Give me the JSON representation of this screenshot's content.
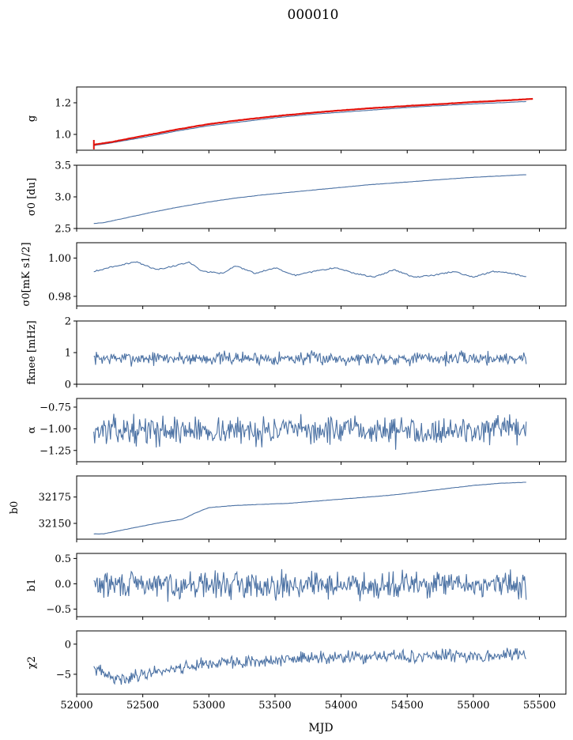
{
  "figure": {
    "title": "000010",
    "xlabel": "MJD"
  },
  "colors": {
    "series": "#4c72a4",
    "fit": "#e3120b"
  },
  "chart_data": [
    {
      "type": "line",
      "ylabel": "g",
      "xlim": [
        52000,
        55700
      ],
      "ylim": [
        0.9,
        1.3
      ],
      "yticks": [
        1.0,
        1.2
      ],
      "yticklabels": [
        "1.0",
        "1.2"
      ],
      "series": [
        {
          "values_x": [
            52130,
            52250,
            52500,
            52750,
            53000,
            53250,
            53500,
            53750,
            54000,
            54250,
            54500,
            54750,
            55000,
            55250,
            55400
          ],
          "values": [
            0.93,
            0.945,
            0.98,
            1.02,
            1.055,
            1.08,
            1.105,
            1.125,
            1.14,
            1.155,
            1.17,
            1.182,
            1.193,
            1.202,
            1.208
          ]
        },
        {
          "values_x": [
            52130,
            52250,
            52500,
            52750,
            53000,
            53250,
            53500,
            53750,
            54000,
            54250,
            54500,
            54750,
            55000,
            55250,
            55450
          ],
          "values": [
            0.935,
            0.95,
            0.99,
            1.03,
            1.065,
            1.092,
            1.115,
            1.135,
            1.152,
            1.167,
            1.18,
            1.192,
            1.205,
            1.215,
            1.225
          ]
        }
      ]
    },
    {
      "type": "line",
      "ylabel": "σ0 [du]",
      "xlim": [
        52000,
        55700
      ],
      "ylim": [
        2.5,
        3.5
      ],
      "yticks": [
        2.5,
        3.0,
        3.5
      ],
      "yticklabels": [
        "2.5",
        "3.0",
        "3.5"
      ],
      "series": [
        {
          "values_x": [
            52130,
            52200,
            52400,
            52600,
            52800,
            53000,
            53200,
            53400,
            53600,
            53800,
            54000,
            54200,
            54400,
            54600,
            54800,
            55000,
            55200,
            55400
          ],
          "values": [
            2.58,
            2.59,
            2.68,
            2.77,
            2.85,
            2.92,
            2.98,
            3.03,
            3.07,
            3.11,
            3.15,
            3.19,
            3.22,
            3.25,
            3.28,
            3.31,
            3.33,
            3.35
          ]
        }
      ]
    },
    {
      "type": "line",
      "ylabel": "σ0[mK s1/2]",
      "xlim": [
        52000,
        55700
      ],
      "ylim": [
        0.975,
        1.008
      ],
      "yticks": [
        0.98,
        1.0
      ],
      "yticklabels": [
        "0.98",
        "1.00"
      ],
      "series": [
        {
          "values_x": [
            52130,
            52300,
            52450,
            52600,
            52750,
            52850,
            52950,
            53100,
            53200,
            53350,
            53500,
            53650,
            53800,
            53950,
            54100,
            54250,
            54400,
            54550,
            54700,
            54850,
            55000,
            55150,
            55300,
            55400
          ],
          "values": [
            0.993,
            0.996,
            0.998,
            0.994,
            0.996,
            0.998,
            0.993,
            0.992,
            0.996,
            0.992,
            0.995,
            0.991,
            0.993,
            0.995,
            0.992,
            0.99,
            0.994,
            0.99,
            0.991,
            0.993,
            0.99,
            0.993,
            0.992,
            0.99
          ]
        }
      ]
    },
    {
      "type": "line",
      "ylabel": "fknee [mHz]",
      "xlim": [
        52000,
        55700
      ],
      "ylim": [
        0,
        2
      ],
      "yticks": [
        0,
        1,
        2
      ],
      "yticklabels": [
        "0",
        "1",
        "2"
      ],
      "series": [
        {
          "mean": 0.82,
          "noise": 0.12,
          "x_start": 52130,
          "x_end": 55400,
          "n": 520,
          "seed": 7
        }
      ]
    },
    {
      "type": "line",
      "ylabel": "α",
      "xlim": [
        52000,
        55700
      ],
      "ylim": [
        -1.38,
        -0.65
      ],
      "yticks": [
        -1.25,
        -1.0,
        -0.75
      ],
      "yticklabels": [
        "−1.25",
        "−1.00",
        "−0.75"
      ],
      "series": [
        {
          "mean": -1.02,
          "noise": 0.09,
          "x_start": 52130,
          "x_end": 55400,
          "n": 520,
          "seed": 13
        }
      ]
    },
    {
      "type": "line",
      "ylabel": "b0",
      "xlim": [
        52000,
        55700
      ],
      "ylim": [
        32135,
        32195
      ],
      "yticks": [
        32150,
        32175
      ],
      "yticklabels": [
        "32150",
        "32175"
      ],
      "series": [
        {
          "values_x": [
            52130,
            52200,
            52400,
            52600,
            52800,
            52900,
            53000,
            53200,
            53400,
            53600,
            53800,
            54000,
            54200,
            54400,
            54600,
            54800,
            55000,
            55200,
            55400
          ],
          "values": [
            32140,
            32140,
            32145,
            32150,
            32154,
            32160,
            32165,
            32167,
            32168,
            32169,
            32171,
            32173,
            32175,
            32177,
            32180,
            32183,
            32186,
            32188,
            32189
          ]
        }
      ]
    },
    {
      "type": "line",
      "ylabel": "b1",
      "xlim": [
        52000,
        55700
      ],
      "ylim": [
        -0.65,
        0.6
      ],
      "yticks": [
        -0.5,
        0.0,
        0.5
      ],
      "yticklabels": [
        "−0.5",
        "0.0",
        "0.5"
      ],
      "series": [
        {
          "mean": -0.02,
          "noise": 0.15,
          "x_start": 52130,
          "x_end": 55400,
          "n": 520,
          "seed": 29
        }
      ]
    },
    {
      "type": "line",
      "ylabel": "χ2",
      "xlim": [
        52000,
        55700
      ],
      "ylim": [
        -8.3,
        2.2
      ],
      "yticks": [
        -5,
        0
      ],
      "yticklabels": [
        "−5",
        "0"
      ],
      "xticks": [
        52000,
        52500,
        53000,
        53500,
        54000,
        54500,
        55000,
        55500
      ],
      "xticklabels": [
        "52000",
        "52500",
        "53000",
        "53500",
        "54000",
        "54500",
        "55000",
        "55500"
      ],
      "series": [
        {
          "trend_x": [
            52130,
            52300,
            52600,
            53000,
            53400,
            53800,
            54200,
            54600,
            55000,
            55400
          ],
          "trend": [
            -4.0,
            -6.0,
            -4.5,
            -3.2,
            -2.8,
            -2.3,
            -2.2,
            -2.0,
            -1.9,
            -1.7
          ],
          "noise": 0.8,
          "n": 520,
          "seed": 41
        }
      ]
    }
  ]
}
